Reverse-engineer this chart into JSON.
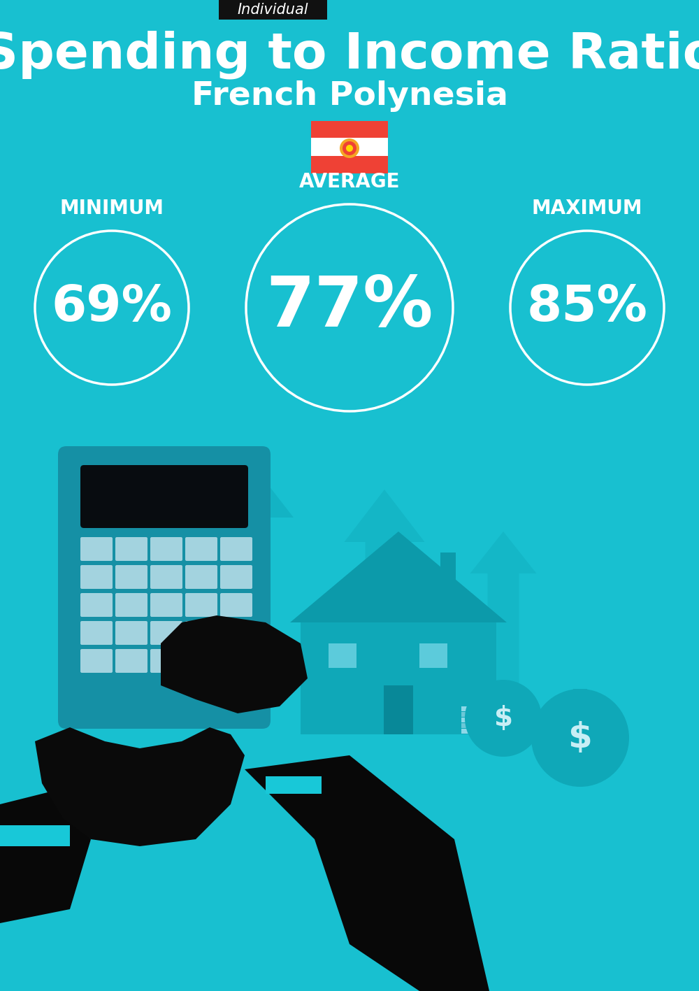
{
  "title_tag": "Individual",
  "title_main": "Spending to Income Ratio",
  "title_sub": "French Polynesia",
  "bg_color": "#18C0D0",
  "tag_bg": "#111111",
  "tag_text_color": "#ffffff",
  "title_color": "#ffffff",
  "subtitle_color": "#ffffff",
  "min_label": "MINIMUM",
  "avg_label": "AVERAGE",
  "max_label": "MAXIMUM",
  "min_value": "69%",
  "avg_value": "77%",
  "max_value": "85%",
  "value_color": "#ffffff",
  "label_color": "#ffffff",
  "fig_width": 10.0,
  "fig_height": 14.17,
  "dpi": 100
}
